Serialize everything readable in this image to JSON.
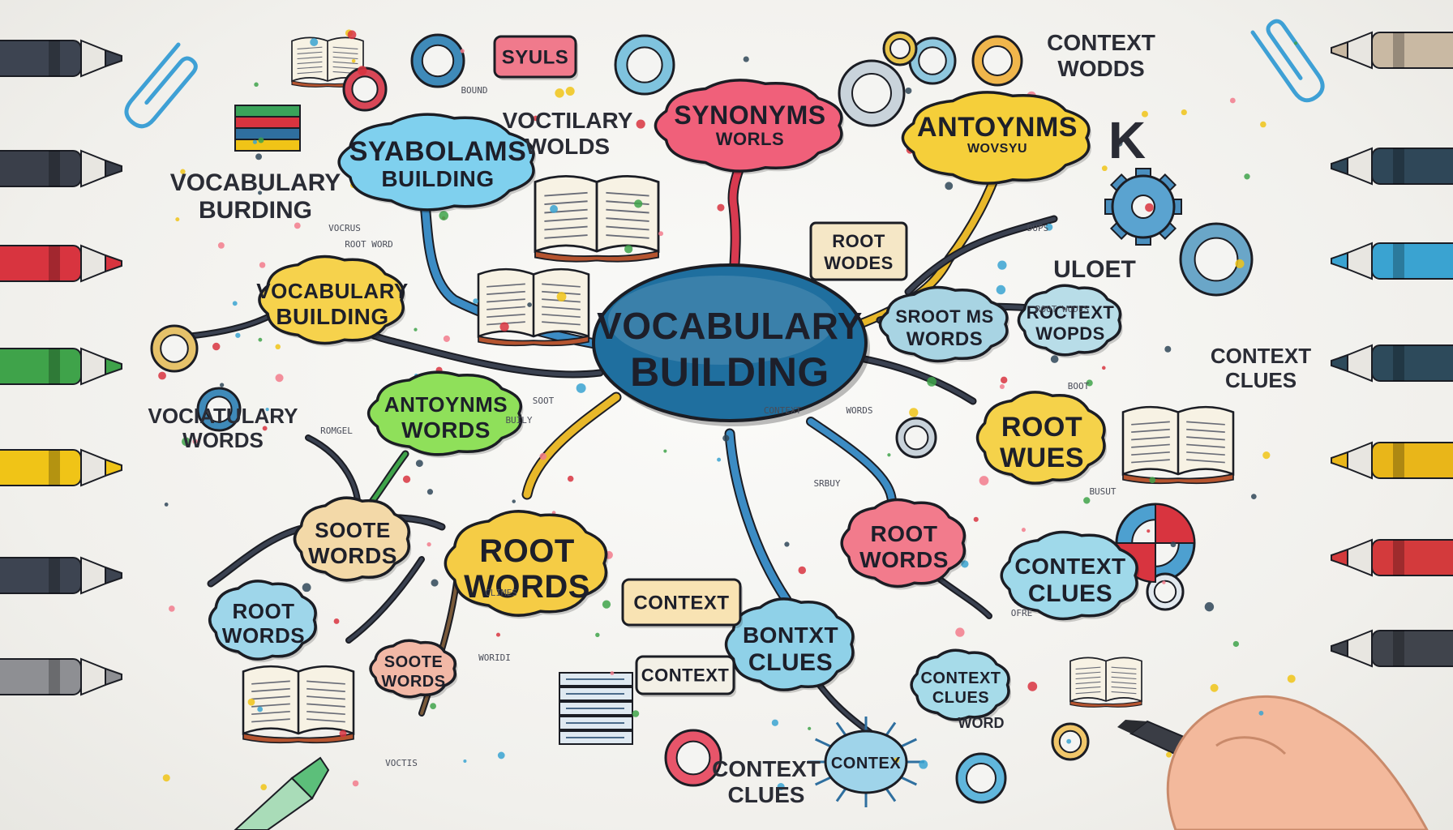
{
  "central": {
    "line1": "VOCABULARY",
    "line2": "BUILDING",
    "color": "#1f6f9f"
  },
  "nodes": [
    {
      "id": "syabolams",
      "line1": "SYABOLAMS",
      "line2": "BUILDING",
      "color": "#7fd0ee",
      "shape": "cloud"
    },
    {
      "id": "synonyms",
      "line1": "SYNONYMS",
      "line2": "WORLS",
      "color": "#f0607a",
      "shape": "cloud"
    },
    {
      "id": "antoynms-top",
      "line1": "ANTOYNMS",
      "line2": "WOVSYU",
      "color": "#f5cf3a",
      "shape": "cloud"
    },
    {
      "id": "vocab-left",
      "line1": "VOCABULARY",
      "line2": "BUILDING",
      "color": "#f6d24c",
      "shape": "cloud"
    },
    {
      "id": "antoynms-green",
      "line1": "ANTOYNMS",
      "line2": "WORDS",
      "color": "#8fe05a",
      "shape": "cloud"
    },
    {
      "id": "sroot-words",
      "line1": "SROOT MS",
      "line2": "WORDS",
      "color": "#a8d4e3",
      "shape": "cloud"
    },
    {
      "id": "roctext-words",
      "line1": "ROCTEXT",
      "line2": "WOPDS",
      "color": "#b8dde8",
      "shape": "cloud"
    },
    {
      "id": "root-wues",
      "line1": "ROOT",
      "line2": "WUES",
      "color": "#f5d24a",
      "shape": "cloud"
    },
    {
      "id": "soote-words",
      "line1": "SOOTE",
      "line2": "WORDS",
      "color": "#f3d9a8",
      "shape": "cloud"
    },
    {
      "id": "root-words-main",
      "line1": "ROOT",
      "line2": "WORDS",
      "color": "#f5cc45",
      "shape": "cloud"
    },
    {
      "id": "root-words-pink",
      "line1": "ROOT",
      "line2": "WORDS",
      "color": "#f27b8c",
      "shape": "cloud"
    },
    {
      "id": "context-clues-right",
      "line1": "CONTEXT",
      "line2": "CLUES",
      "color": "#9fd9ea",
      "shape": "cloud"
    },
    {
      "id": "root-words-left",
      "line1": "ROOT",
      "line2": "WORDS",
      "color": "#9ed6ea",
      "shape": "cloud"
    },
    {
      "id": "bontxt-clues",
      "line1": "BONTXT",
      "line2": "CLUES",
      "color": "#8fd1e8",
      "shape": "cloud"
    },
    {
      "id": "context-clues-small",
      "line1": "CONTEXT",
      "line2": "CLUES",
      "color": "#a6dbe9",
      "shape": "cloud"
    },
    {
      "id": "soote-words-small",
      "line1": "SOOTE",
      "line2": "WORDS",
      "color": "#f2b8a6",
      "shape": "cloud"
    }
  ],
  "labels": {
    "syuls": "SYULS",
    "root-wodes": {
      "line1": "ROOT",
      "line2": "WODES"
    },
    "context-box": "CONTEXT",
    "context-box2": "CONTEXT",
    "context-sun": "CONTEX"
  },
  "floating": [
    {
      "id": "context-wods-top",
      "line1": "CONTEXT",
      "line2": "WODDS"
    },
    {
      "id": "voctilary",
      "line1": "VOCTILARY",
      "line2": "WOLDS"
    },
    {
      "id": "vocabulary-building-left",
      "line1": "VOCABULARY",
      "line2": "BURDING"
    },
    {
      "id": "vocabulary-words-left",
      "line1": "VOCIATULARY",
      "line2": "WORDS"
    },
    {
      "id": "context-clues-right-float",
      "line1": "CONTEXT",
      "line2": "CLUES"
    },
    {
      "id": "context-clues-bottom",
      "line1": "CONTEXT",
      "line2": "CLUES"
    },
    {
      "id": "word",
      "line1": "WORD",
      "line2": ""
    },
    {
      "id": "uloet",
      "line1": "ULOET",
      "line2": ""
    },
    {
      "id": "k-letter",
      "line1": "K",
      "line2": ""
    }
  ],
  "scribbles": [
    "BOUND",
    "VOCRUS",
    "ROOT WORD",
    "ROMGEL",
    "SOOT",
    "BUILY",
    "CONTEXT",
    "WORDS",
    "SRBUY",
    "DUPS",
    "ROOT WODES",
    "BOOT",
    "CLIMES",
    "WORIDI",
    "BUSUT",
    "OFRE",
    "VOCTIS"
  ],
  "colors": {
    "connector_blue": "#3c8cc4",
    "connector_yellow": "#e8b82a",
    "connector_dark": "#3a4150",
    "connector_red": "#d93a50",
    "outline": "#1b1d24"
  },
  "markers": [
    {
      "side": "left",
      "color": "#3d4451"
    },
    {
      "side": "left",
      "color": "#3a3f4a"
    },
    {
      "side": "left",
      "color": "#d8343f"
    },
    {
      "side": "left",
      "color": "#3fa34a"
    },
    {
      "side": "left",
      "color": "#f0c417"
    },
    {
      "side": "left",
      "color": "#3d4451"
    },
    {
      "side": "left",
      "color": "#8e8f93"
    },
    {
      "side": "right",
      "color": "#c9b9a3"
    },
    {
      "side": "right",
      "color": "#2f4758"
    },
    {
      "side": "right",
      "color": "#3aa3d1"
    },
    {
      "side": "right",
      "color": "#2d4a5b"
    },
    {
      "side": "right",
      "color": "#e9b619"
    },
    {
      "side": "right",
      "color": "#d33a3c"
    },
    {
      "side": "right",
      "color": "#40444c"
    }
  ]
}
